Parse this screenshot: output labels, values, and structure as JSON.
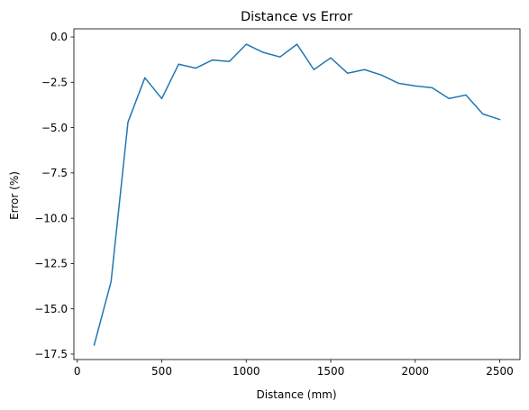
{
  "chart_data": {
    "type": "line",
    "title": "Distance vs Error",
    "xlabel": "Distance (mm)",
    "ylabel": "Error (%)",
    "xlim": [
      -20,
      2620
    ],
    "ylim": [
      -17.8,
      0.45
    ],
    "grid": false,
    "xticks": [
      0,
      500,
      1000,
      1500,
      2000,
      2500
    ],
    "xtick_labels": [
      "0",
      "500",
      "1000",
      "1500",
      "2000",
      "2500"
    ],
    "yticks": [
      0.0,
      -2.5,
      -5.0,
      -7.5,
      -10.0,
      -12.5,
      -15.0,
      -17.5
    ],
    "ytick_labels": [
      "0.0",
      "−2.5",
      "−5.0",
      "−7.5",
      "−10.0",
      "−12.5",
      "−15.0",
      "−17.5"
    ],
    "series": [
      {
        "color": "#1f77b4",
        "x": [
          100,
          200,
          300,
          400,
          500,
          600,
          700,
          800,
          900,
          1000,
          1100,
          1200,
          1300,
          1400,
          1500,
          1600,
          1700,
          1800,
          1900,
          2000,
          2100,
          2200,
          2300,
          2400,
          2500
        ],
        "y": [
          -17.0,
          -13.5,
          -4.7,
          -2.25,
          -3.4,
          -1.5,
          -1.72,
          -1.27,
          -1.35,
          -0.4,
          -0.85,
          -1.1,
          -0.4,
          -1.8,
          -1.15,
          -2.0,
          -1.8,
          -2.1,
          -2.55,
          -2.7,
          -2.8,
          -3.4,
          -3.2,
          -4.25,
          -4.55
        ]
      }
    ]
  }
}
